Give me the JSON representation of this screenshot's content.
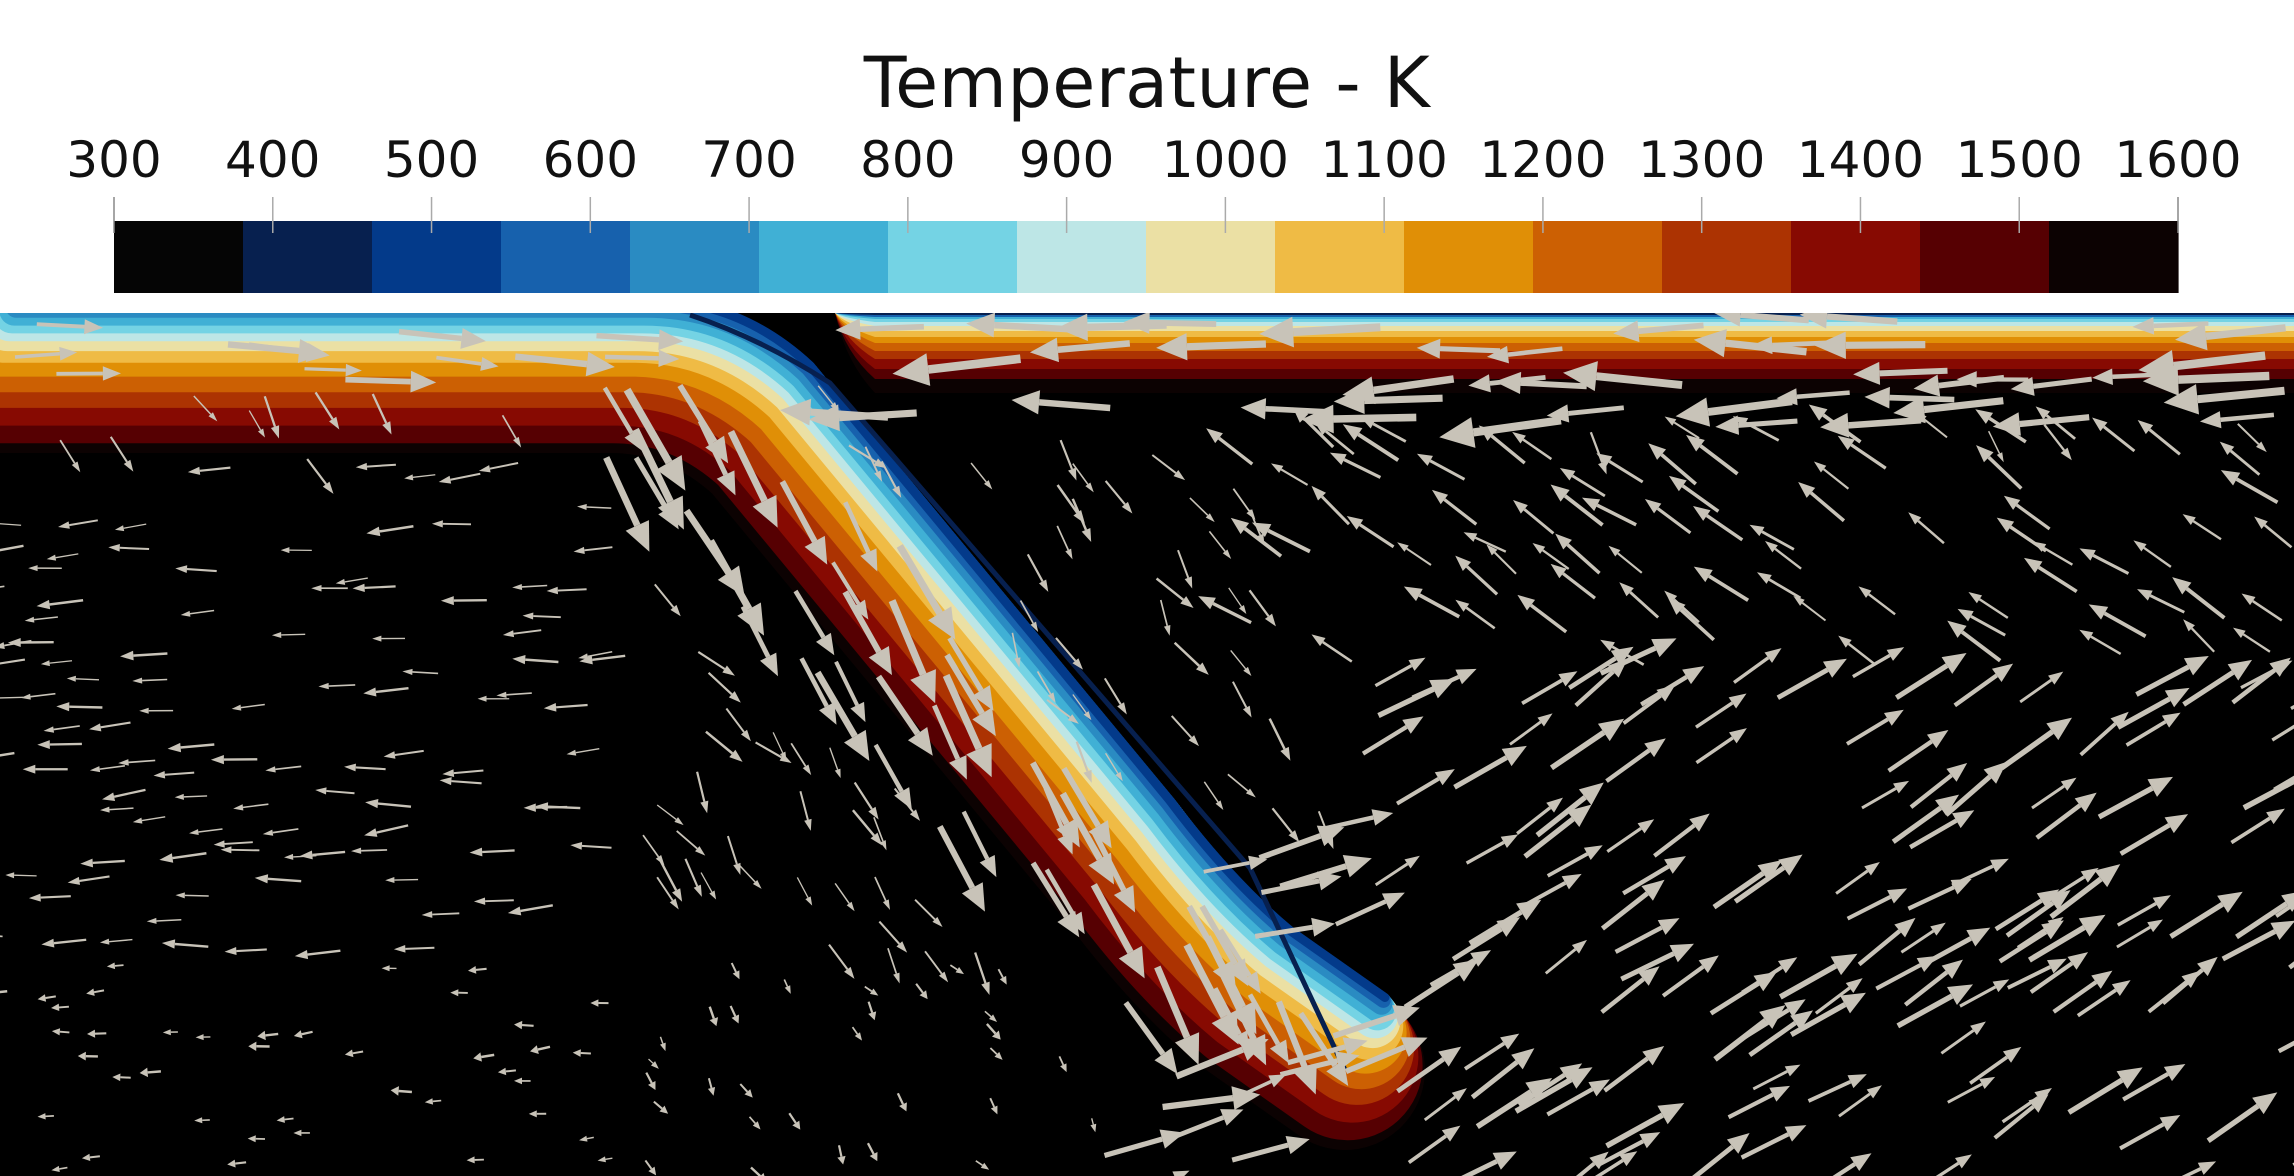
{
  "colorbar": {
    "title": "Temperature - K",
    "tick_labels": [
      "300",
      "400",
      "500",
      "600",
      "700",
      "800",
      "900",
      "1000",
      "1100",
      "1200",
      "1300",
      "1400",
      "1500",
      "1600"
    ],
    "range": [
      300,
      1600
    ],
    "bins": 16,
    "colors": [
      "#050505",
      "#07204f",
      "#033a8a",
      "#1761ad",
      "#2a8bc2",
      "#40b0d5",
      "#74d3e4",
      "#bde6e6",
      "#ebe0a4",
      "#efbb45",
      "#e08f06",
      "#cc6003",
      "#ac3302",
      "#870a02",
      "#560002",
      "#0c0202"
    ]
  },
  "visualization": {
    "background_color": "#000000",
    "arrow_color": "#c8c3b8",
    "glyph_icon": "arrow-glyph-icon"
  }
}
